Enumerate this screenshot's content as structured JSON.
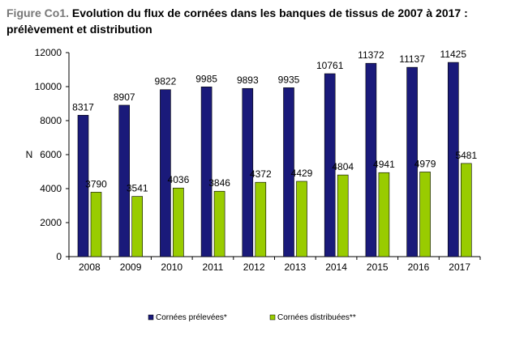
{
  "figure": {
    "title_lead": "Figure Co1.",
    "title_rest": "Evolution du flux de cornées dans les banques de tissus de 2007 à 2017 : prélèvement et distribution"
  },
  "chart_data": {
    "type": "bar",
    "ylabel": "N",
    "xlabel": "",
    "ylim": [
      0,
      12000
    ],
    "yticks": [
      0,
      2000,
      4000,
      6000,
      8000,
      10000,
      12000
    ],
    "grid": false,
    "legend_position": "bottom",
    "categories": [
      "2008",
      "2009",
      "2010",
      "2011",
      "2012",
      "2013",
      "2014",
      "2015",
      "2016",
      "2017"
    ],
    "series": [
      {
        "name": "Cornées prélevées*",
        "color": "#1a1a7a",
        "values": [
          8317,
          8907,
          9822,
          9985,
          9893,
          9935,
          10761,
          11372,
          11137,
          11425
        ]
      },
      {
        "name": "Cornées distribuées**",
        "color": "#99cc00",
        "values": [
          3790,
          3541,
          4036,
          3846,
          4372,
          4429,
          4804,
          4941,
          4979,
          5481
        ]
      }
    ]
  }
}
